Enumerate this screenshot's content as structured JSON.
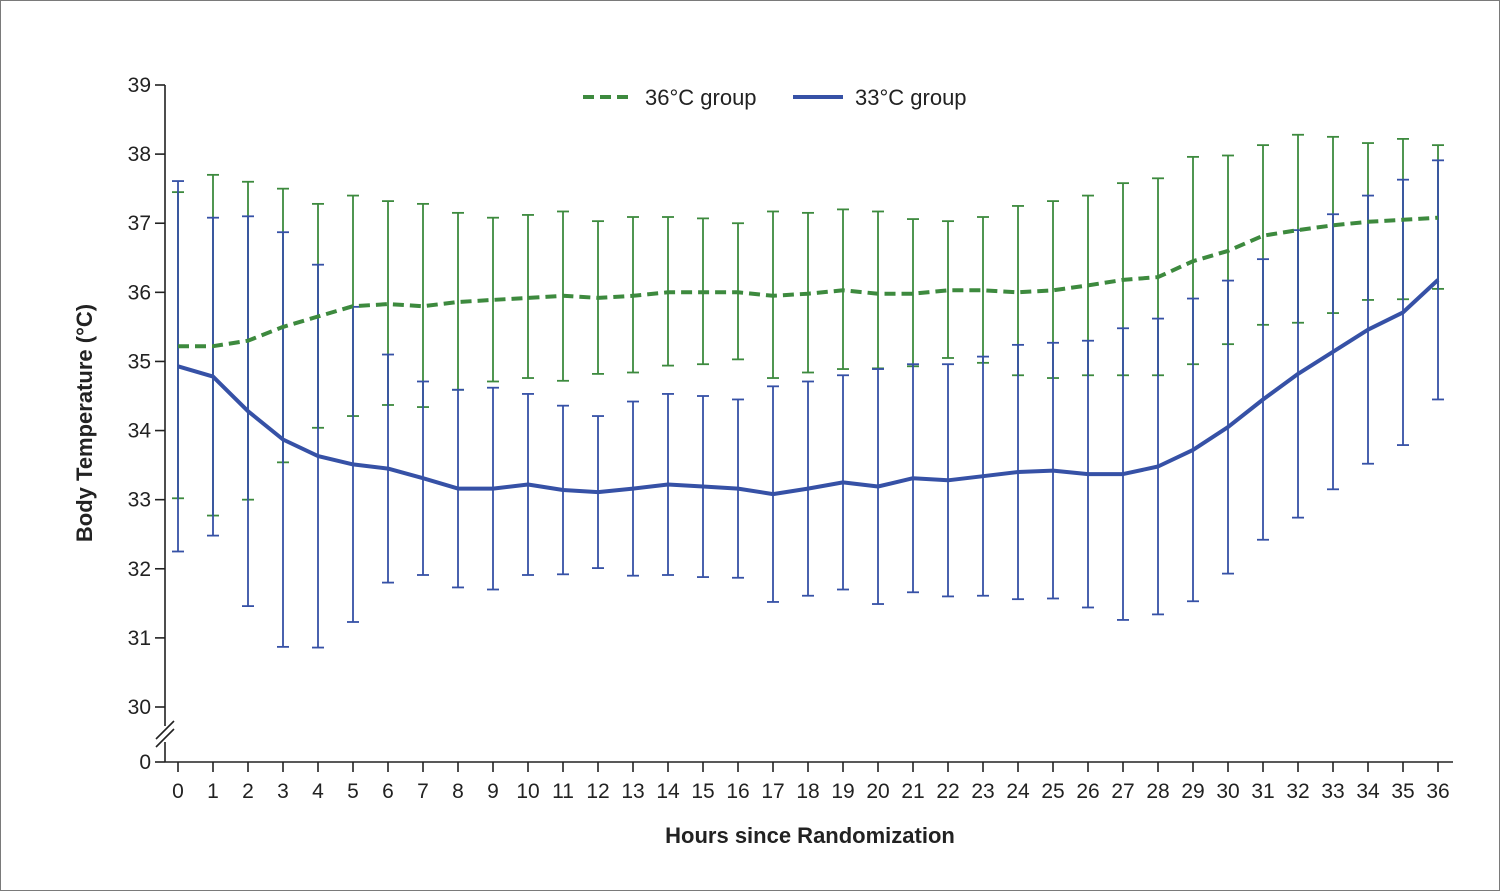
{
  "chart_data": {
    "type": "line",
    "title": "",
    "xlabel": "Hours since Randomization",
    "ylabel": "Body Temperature (°C)",
    "xlim": [
      0,
      36
    ],
    "ylim": [
      30,
      39
    ],
    "y_axis_break": true,
    "y_ticks": [
      0,
      30,
      31,
      32,
      33,
      34,
      35,
      36,
      37,
      38,
      39
    ],
    "x": [
      0,
      1,
      2,
      3,
      4,
      5,
      6,
      7,
      8,
      9,
      10,
      11,
      12,
      13,
      14,
      15,
      16,
      17,
      18,
      19,
      20,
      21,
      22,
      23,
      24,
      25,
      26,
      27,
      28,
      29,
      30,
      31,
      32,
      33,
      34,
      35,
      36
    ],
    "legend_position": "top-center",
    "series": [
      {
        "name": "36°C group",
        "color": "#3d8a3e",
        "line_style": "dashed",
        "values": [
          35.22,
          35.22,
          35.3,
          35.5,
          35.65,
          35.8,
          35.83,
          35.8,
          35.86,
          35.89,
          35.92,
          35.95,
          35.92,
          35.95,
          36.0,
          36.0,
          36.0,
          35.95,
          35.98,
          36.03,
          35.98,
          35.98,
          36.03,
          36.03,
          36.0,
          36.03,
          36.1,
          36.18,
          36.22,
          36.45,
          36.6,
          36.82,
          36.9,
          36.97,
          37.02,
          37.05,
          37.08
        ],
        "upper": [
          37.45,
          37.7,
          37.6,
          37.5,
          37.28,
          37.4,
          37.32,
          37.28,
          37.15,
          37.08,
          37.12,
          37.17,
          37.03,
          37.09,
          37.09,
          37.07,
          37.0,
          37.17,
          37.15,
          37.2,
          37.17,
          37.06,
          37.03,
          37.09,
          37.25,
          37.32,
          37.4,
          37.58,
          37.65,
          37.96,
          37.98,
          38.13,
          38.28,
          38.25,
          38.16,
          38.22,
          38.13
        ],
        "lower": [
          33.02,
          32.77,
          33.0,
          33.54,
          34.04,
          34.21,
          34.37,
          34.34,
          34.59,
          34.71,
          34.76,
          34.72,
          34.82,
          34.84,
          34.94,
          34.96,
          35.03,
          34.76,
          34.84,
          34.89,
          34.9,
          34.93,
          35.05,
          34.98,
          34.8,
          34.76,
          34.8,
          34.8,
          34.8,
          34.96,
          35.25,
          35.53,
          35.56,
          35.7,
          35.89,
          35.9,
          36.05
        ]
      },
      {
        "name": "33°C group",
        "color": "#3651a6",
        "line_style": "solid",
        "values": [
          34.93,
          34.78,
          34.28,
          33.87,
          33.63,
          33.51,
          33.45,
          33.31,
          33.16,
          33.16,
          33.22,
          33.14,
          33.11,
          33.16,
          33.22,
          33.19,
          33.16,
          33.08,
          33.16,
          33.25,
          33.19,
          33.31,
          33.28,
          33.34,
          33.4,
          33.42,
          33.37,
          33.37,
          33.48,
          33.72,
          34.05,
          34.45,
          34.82,
          35.14,
          35.46,
          35.71,
          36.18
        ],
        "upper": [
          37.61,
          37.08,
          37.1,
          36.87,
          36.4,
          35.79,
          35.1,
          34.71,
          34.59,
          34.62,
          34.53,
          34.36,
          34.21,
          34.42,
          34.53,
          34.5,
          34.45,
          34.64,
          34.71,
          34.8,
          34.89,
          34.96,
          34.96,
          35.07,
          35.24,
          35.27,
          35.3,
          35.48,
          35.62,
          35.91,
          36.17,
          36.48,
          36.9,
          37.13,
          37.4,
          37.63,
          37.91
        ]
      }
    ]
  }
}
